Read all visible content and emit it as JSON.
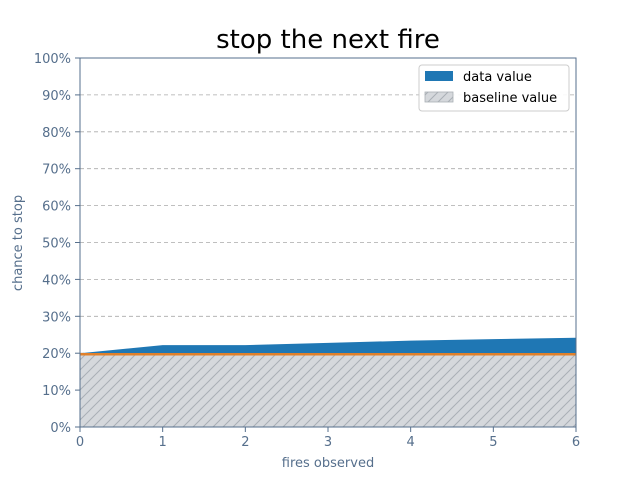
{
  "colors": {
    "data_fill": "#1f77b4",
    "baseline_fill": "#d5d8dc",
    "baseline_hatch": "#a9afb5",
    "baseline_line": "#e0802a",
    "axis": "#566f8c",
    "grid": "#aaaaaa"
  },
  "chart_data": {
    "type": "area",
    "title": "stop the next fire",
    "xlabel": "fires observed",
    "ylabel": "chance to stop",
    "x": [
      0,
      1,
      2,
      3,
      4,
      5,
      6
    ],
    "x_ticks": [
      "0",
      "1",
      "2",
      "3",
      "4",
      "5",
      "6"
    ],
    "y_ticks": [
      "0%",
      "10%",
      "20%",
      "30%",
      "40%",
      "50%",
      "60%",
      "70%",
      "80%",
      "90%",
      "100%"
    ],
    "xlim": [
      0,
      6
    ],
    "ylim": [
      0,
      1
    ],
    "grid": "horizontal dashed",
    "legend_position": "top-right",
    "series": [
      {
        "name": "data value",
        "values": [
          0.2,
          0.222,
          0.222,
          0.228,
          0.234,
          0.238,
          0.242
        ]
      },
      {
        "name": "baseline value",
        "values": [
          0.2,
          0.2,
          0.2,
          0.2,
          0.2,
          0.2,
          0.2
        ]
      }
    ]
  }
}
